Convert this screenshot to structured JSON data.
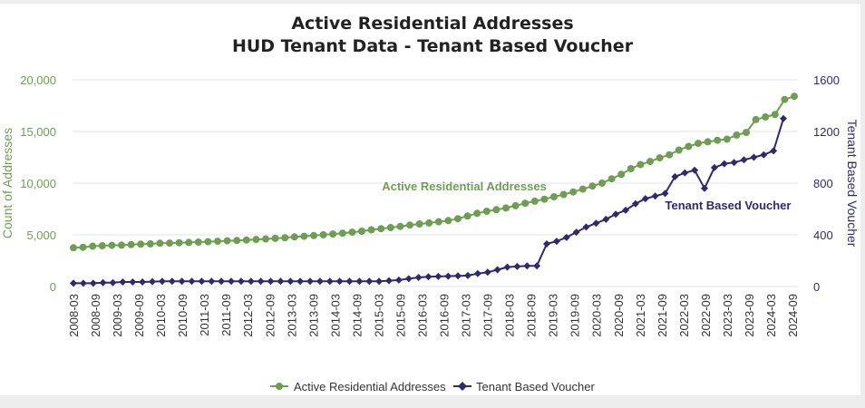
{
  "colors": {
    "green": "#6e9e52",
    "navy": "#2f2a6e",
    "grid": "#e3e3e3",
    "greenText": "#6e9e52",
    "navyText": "#2f2a6e"
  },
  "chart_data": {
    "type": "line",
    "title": "Active Residential Addresses",
    "subtitle": "HUD Tenant Data - Tenant Based Voucher",
    "ylabel_left": "Count of Addresses",
    "ylabel_right": "Tenant Based Voucher",
    "ylim_left": [
      0,
      20000
    ],
    "ylim_right": [
      0,
      1600
    ],
    "yticks_left": [
      "0",
      "5,000",
      "10,000",
      "15,000",
      "20,000"
    ],
    "yticks_right": [
      "0",
      "400",
      "800",
      "1200",
      "1600"
    ],
    "x_labels": [
      "2008-03",
      "2008-09",
      "2009-03",
      "2009-09",
      "2010-03",
      "2010-09",
      "2011-03",
      "2011-09",
      "2012-03",
      "2012-09",
      "2013-03",
      "2013-09",
      "2014-03",
      "2014-09",
      "2015-03",
      "2015-09",
      "2016-03",
      "2016-09",
      "2017-03",
      "2017-09",
      "2018-03",
      "2018-09",
      "2019-03",
      "2019-09",
      "2020-03",
      "2020-09",
      "2021-03",
      "2021-09",
      "2022-03",
      "2022-09",
      "2023-03",
      "2023-09",
      "2024-03",
      "2024-09"
    ],
    "legend_position": "bottom",
    "annotations": [
      "Active Residential Addresses",
      "Tenant Based Voucher"
    ],
    "series": [
      {
        "name": "Active Residential Addresses",
        "axis": "left",
        "values": [
          3750,
          3800,
          3900,
          3950,
          3980,
          4000,
          4050,
          4100,
          4120,
          4180,
          4200,
          4240,
          4260,
          4300,
          4330,
          4380,
          4420,
          4460,
          4500,
          4550,
          4600,
          4660,
          4720,
          4800,
          4860,
          4930,
          5000,
          5080,
          5160,
          5250,
          5350,
          5480,
          5600,
          5700,
          5820,
          5950,
          6050,
          6150,
          6260,
          6380,
          6560,
          6820,
          7080,
          7280,
          7430,
          7600,
          7820,
          8050,
          8250,
          8450,
          8680,
          8900,
          9150,
          9420,
          9720,
          10000,
          10420,
          10850,
          11400,
          11800,
          12100,
          12450,
          12750,
          13200,
          13550,
          13850,
          14000,
          14150,
          14250,
          14650,
          14900,
          16150,
          16400,
          16650,
          18100,
          18400
        ]
      },
      {
        "name": "Tenant Based Voucher",
        "axis": "right",
        "values": [
          25,
          25,
          25,
          30,
          30,
          35,
          35,
          35,
          38,
          40,
          40,
          40,
          40,
          40,
          40,
          40,
          40,
          40,
          40,
          40,
          40,
          40,
          40,
          40,
          40,
          40,
          40,
          40,
          40,
          40,
          40,
          40,
          45,
          50,
          60,
          70,
          75,
          78,
          80,
          82,
          85,
          100,
          110,
          130,
          150,
          155,
          160,
          160,
          330,
          350,
          380,
          420,
          460,
          490,
          520,
          560,
          590,
          640,
          680,
          700,
          720,
          850,
          880,
          900,
          760,
          920,
          950,
          960,
          980,
          1000,
          1020,
          1050,
          1300
        ]
      }
    ]
  }
}
